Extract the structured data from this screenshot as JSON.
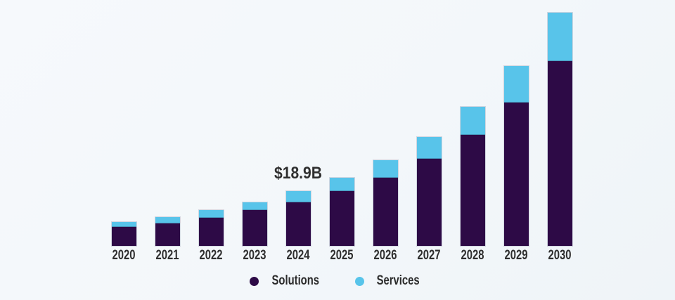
{
  "chart_data": {
    "type": "bar",
    "stacked": true,
    "title": "",
    "xlabel": "",
    "ylabel": "",
    "unit": "USD billions",
    "categories": [
      "2020",
      "2021",
      "2022",
      "2023",
      "2024",
      "2025",
      "2026",
      "2027",
      "2028",
      "2029",
      "2030"
    ],
    "series": [
      {
        "name": "Solutions",
        "color": "#2d0a46",
        "values": [
          6.5,
          7.8,
          9.7,
          12.4,
          15.0,
          18.9,
          23.5,
          30.0,
          38.3,
          49.4,
          63.7
        ]
      },
      {
        "name": "Services",
        "color": "#58c4ea",
        "values": [
          1.7,
          2.2,
          2.7,
          2.7,
          3.9,
          4.6,
          6.1,
          7.5,
          9.7,
          12.6,
          16.5
        ]
      }
    ],
    "totals": [
      8.2,
      10.0,
      12.4,
      15.1,
      18.9,
      23.5,
      29.6,
      37.5,
      48.0,
      62.0,
      80.2
    ],
    "annotation": {
      "text": "$18.9B",
      "category": "2024"
    },
    "ylim": [
      0,
      81
    ],
    "grid": false,
    "y_axis_visible": false,
    "x_axis_line_visible": false,
    "legend_position": "bottom"
  },
  "legend": {
    "items": [
      {
        "label": "Solutions",
        "color": "#2d0a46"
      },
      {
        "label": "Services",
        "color": "#58c4ea"
      }
    ]
  },
  "colors": {
    "background": "#f4f7fa",
    "label_text": "#2e2e2e",
    "annotation_text": "#2f2f2f"
  }
}
